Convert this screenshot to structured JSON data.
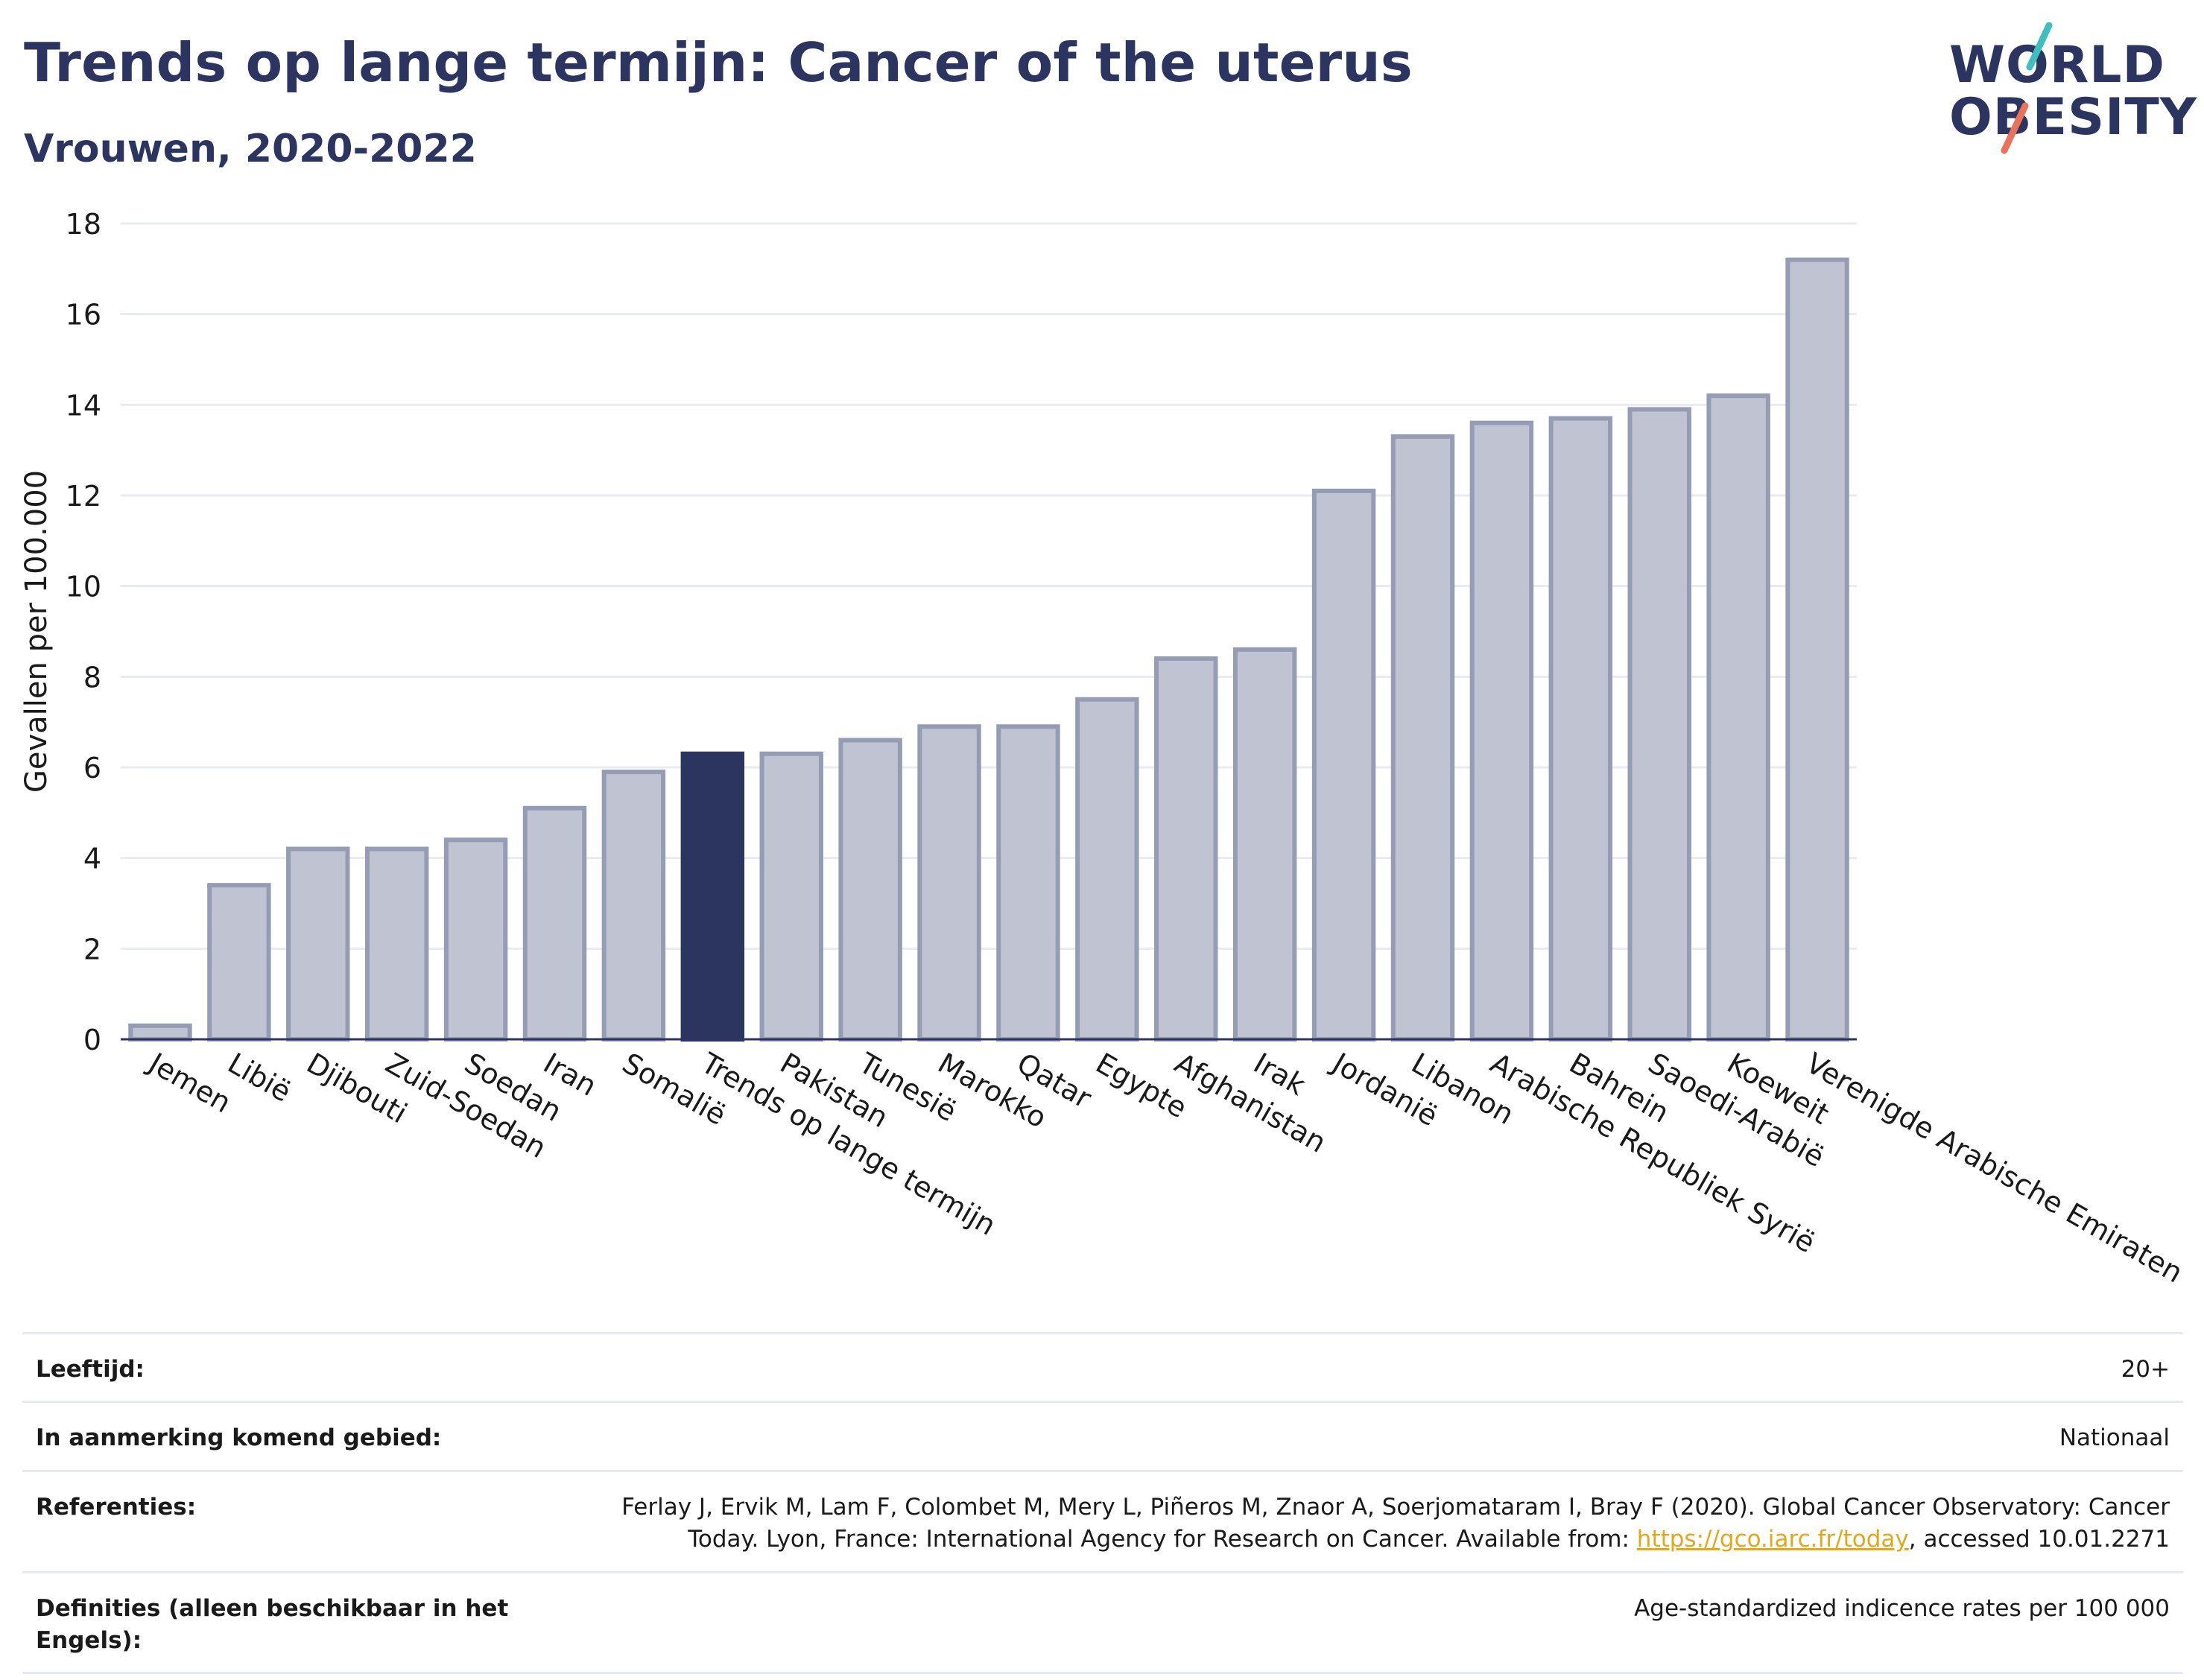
{
  "header": {
    "title": "Trends op lange termijn: Cancer of the uterus",
    "subtitle": "Vrouwen, 2020-2022"
  },
  "logo": {
    "line1": "WORLD",
    "line2": "OBESITY",
    "colors": {
      "text": "#2b3560",
      "slash_top": "#3dbfbf",
      "slash_bottom": "#e8735a"
    }
  },
  "colors": {
    "bar": "#bfc3d2",
    "bar_border": "#969cb4",
    "highlight": "#2b3560",
    "grid": "#e8ebf1",
    "link": "#e2a81c"
  },
  "chart_data": {
    "type": "bar",
    "title": "Trends op lange termijn: Cancer of the uterus",
    "subtitle": "Vrouwen, 2020-2022",
    "ylabel": "Gevallen per 100.000",
    "xlabel": "",
    "ylim": [
      0,
      18
    ],
    "yticks": [
      0,
      2,
      4,
      6,
      8,
      10,
      12,
      14,
      16,
      18
    ],
    "grid": true,
    "categories": [
      "Jemen",
      "Libië",
      "Djibouti",
      "Zuid-Soedan",
      "Soedan",
      "Iran",
      "Somalië",
      "Trends op lange termijn",
      "Pakistan",
      "Tunesië",
      "Marokko",
      "Qatar",
      "Egypte",
      "Afghanistan",
      "Irak",
      "Jordanië",
      "Libanon",
      "Arabische Republiek Syrië",
      "Bahrein",
      "Saoedi-Arabië",
      "Koeweit",
      "Verenigde Arabische Emiraten"
    ],
    "values": [
      0.3,
      3.4,
      4.2,
      4.2,
      4.4,
      5.1,
      5.9,
      6.3,
      6.3,
      6.6,
      6.9,
      6.9,
      7.5,
      8.4,
      8.6,
      12.1,
      13.3,
      13.6,
      13.7,
      13.9,
      14.2,
      17.2
    ],
    "highlight_category": "Trends op lange termijn"
  },
  "meta": {
    "age_label": "Leeftijd:",
    "age_value": "20+",
    "area_label": "In aanmerking komend gebied:",
    "area_value": "Nationaal",
    "ref_label": "Referenties:",
    "ref_text_1": "Ferlay J, Ervik M, Lam F, Colombet M, Mery L, Piñeros M, Znaor A, Soerjomataram I, Bray F (2020). Global Cancer Observatory: Cancer Today. Lyon, France: International Agency for Research on Cancer. Available from: ",
    "ref_link": "https://gco.iarc.fr/today",
    "ref_text_2": ", accessed 10.01.2271",
    "def_label": "Definities (alleen beschikbaar in het Engels):",
    "def_value": "Age-standardized indicence rates per 100 000"
  }
}
